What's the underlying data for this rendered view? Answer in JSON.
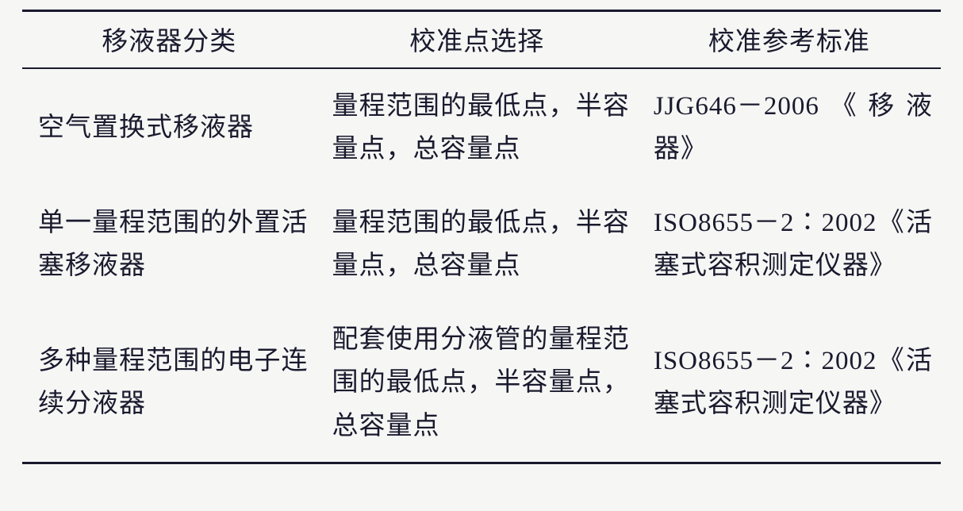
{
  "table": {
    "columns": [
      {
        "label": "移液器分类",
        "width": "32%"
      },
      {
        "label": "校准点选择",
        "width": "35%"
      },
      {
        "label": "校准参考标准",
        "width": "33%"
      }
    ],
    "rows": [
      {
        "category": "空气置换式移液器",
        "calibration_point": "量程范围的最低点，半容量点，总容量点",
        "standard": "JJG646－2006《移液器》"
      },
      {
        "category": "单一量程范围的外置活塞移液器",
        "calibration_point": "量程范围的最低点，半容量点，总容量点",
        "standard": "ISO8655－2∶2002《活塞式容积测定仪器》"
      },
      {
        "category": "多种量程范围的电子连续分液器",
        "calibration_point": "配套使用分液管的量程范围的最低点，半容量点，总容量点",
        "standard": "ISO8655－2∶2002《活塞式容积测定仪器》"
      }
    ],
    "styling": {
      "background_color": "#f6f6f5",
      "text_color": "#1a1a2e",
      "border_color": "#1a1a2e",
      "font_family": "SimSun",
      "header_fontsize": 33,
      "cell_fontsize": 33,
      "line_height": 1.65,
      "top_border_width": 3,
      "header_bottom_border_width": 2,
      "bottom_border_width": 3
    }
  }
}
